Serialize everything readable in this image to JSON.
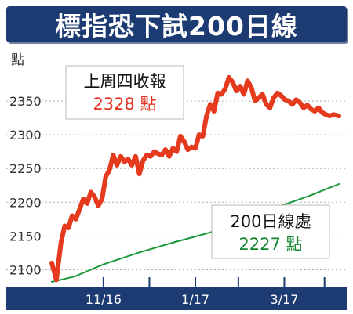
{
  "title": "標指恐下試200日線",
  "chart_data": {
    "type": "line",
    "ylabel": "點",
    "ylim": [
      2075,
      2400
    ],
    "yticks": [
      2100,
      2150,
      2200,
      2250,
      2300,
      2350
    ],
    "xlim": [
      0,
      100
    ],
    "xticks": [
      {
        "x": 18,
        "label": "11/16"
      },
      {
        "x": 50,
        "label": "1/17"
      },
      {
        "x": 81,
        "label": "3/17"
      }
    ],
    "xtick_marks": [
      18,
      34,
      50,
      65,
      81,
      95
    ],
    "series": [
      {
        "name": "上周四收報",
        "color": "#e53a1e",
        "x": [
          0,
          1.6,
          3.2,
          4.5,
          5.8,
          7.1,
          8.4,
          9.7,
          11.0,
          12.3,
          13.6,
          14.9,
          16.2,
          17.5,
          18.8,
          20.1,
          21.4,
          22.7,
          24.0,
          25.3,
          26.6,
          27.9,
          29.2,
          30.5,
          31.8,
          33.1,
          34.4,
          35.7,
          37.0,
          38.3,
          39.6,
          40.9,
          42.2,
          43.5,
          44.8,
          46.1,
          47.4,
          48.7,
          50.0,
          51.3,
          52.6,
          53.9,
          55.2,
          56.5,
          57.8,
          59.1,
          60.4,
          61.7,
          63.0,
          64.3,
          65.6,
          66.9,
          68.2,
          69.5,
          70.8,
          72.1,
          73.4,
          74.7,
          76.0,
          77.3,
          78.6,
          79.9,
          81.2,
          82.5,
          83.8,
          85.1,
          86.4,
          87.7,
          89.0,
          90.3,
          91.6,
          92.9,
          94.2,
          95.5,
          96.8,
          98.1,
          100
        ],
        "values": [
          2110,
          2085,
          2140,
          2165,
          2162,
          2180,
          2175,
          2190,
          2205,
          2198,
          2215,
          2208,
          2195,
          2205,
          2238,
          2248,
          2270,
          2255,
          2268,
          2260,
          2264,
          2255,
          2268,
          2242,
          2262,
          2270,
          2268,
          2275,
          2272,
          2270,
          2278,
          2268,
          2280,
          2275,
          2298,
          2290,
          2278,
          2282,
          2280,
          2300,
          2298,
          2328,
          2345,
          2335,
          2362,
          2360,
          2368,
          2385,
          2378,
          2365,
          2372,
          2360,
          2380,
          2370,
          2350,
          2355,
          2360,
          2345,
          2340,
          2355,
          2362,
          2358,
          2352,
          2350,
          2345,
          2352,
          2348,
          2340,
          2344,
          2338,
          2335,
          2340,
          2333,
          2330,
          2328,
          2330,
          2328
        ]
      },
      {
        "name": "200日線處",
        "color": "#1a9a3a",
        "x": [
          0,
          8,
          18,
          30,
          42,
          55,
          68,
          80,
          90,
          100
        ],
        "values": [
          2082,
          2090,
          2108,
          2125,
          2140,
          2155,
          2175,
          2195,
          2210,
          2227
        ]
      }
    ],
    "callouts": [
      {
        "title": "上周四收報",
        "value": "2328 點"
      },
      {
        "title": "200日線處",
        "value": "2227 點"
      }
    ]
  }
}
